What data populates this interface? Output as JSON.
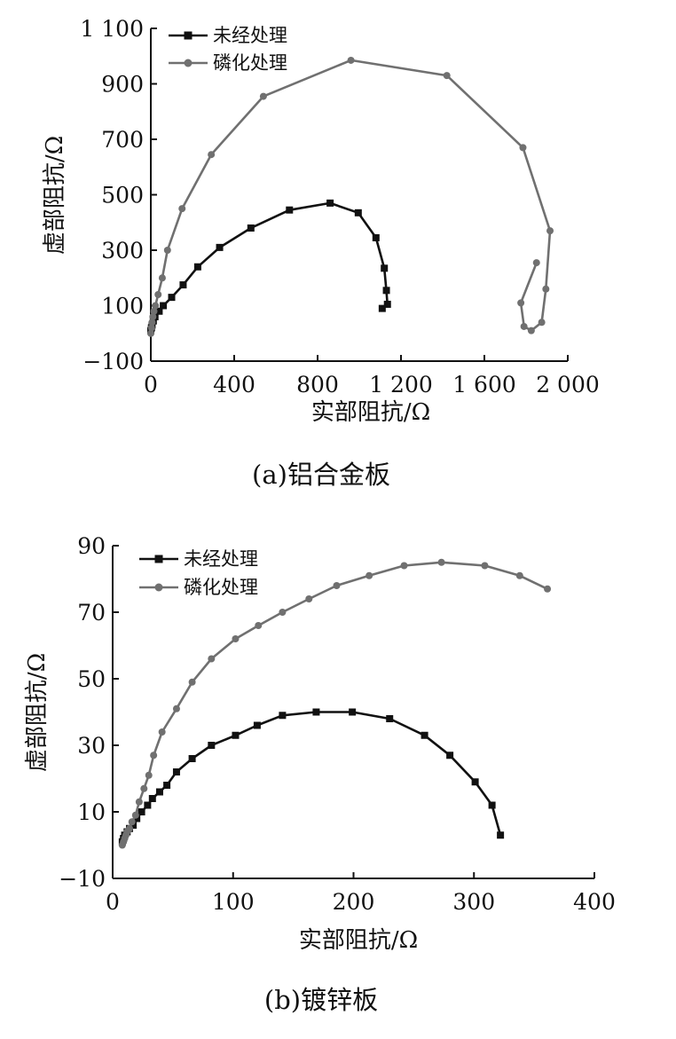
{
  "chart_data": [
    {
      "type": "line",
      "caption": "(a)铝合金板",
      "xlabel": "实部阻抗/Ω",
      "ylabel": "虚部阻抗/Ω",
      "xlim": [
        0,
        2000
      ],
      "ylim": [
        -100,
        1100
      ],
      "xticks": [
        0,
        400,
        800,
        1200,
        1600,
        2000
      ],
      "xtick_labels": [
        "0",
        "400",
        "800",
        "1 200",
        "1 600",
        "2 000"
      ],
      "yticks": [
        -100,
        100,
        300,
        500,
        700,
        900,
        1100
      ],
      "ytick_labels": [
        "−100",
        "100",
        "300",
        "500",
        "700",
        "900",
        "1 100"
      ],
      "legend_position": "top-left",
      "series": [
        {
          "name": "未经处理",
          "color": "#111111",
          "marker": "square",
          "x": [
            0,
            3,
            6,
            12,
            20,
            40,
            60,
            100,
            155,
            225,
            330,
            480,
            665,
            860,
            995,
            1080,
            1120,
            1130,
            1135,
            1110
          ],
          "y": [
            10,
            20,
            30,
            45,
            60,
            80,
            100,
            130,
            175,
            240,
            310,
            380,
            445,
            470,
            435,
            345,
            235,
            155,
            105,
            90
          ]
        },
        {
          "name": "磷化处理",
          "color": "#707070",
          "marker": "circle",
          "x": [
            0,
            3,
            6,
            10,
            15,
            22,
            35,
            55,
            80,
            150,
            290,
            540,
            960,
            1420,
            1785,
            1915,
            1895,
            1875,
            1825,
            1790,
            1775,
            1850
          ],
          "y": [
            0,
            20,
            40,
            60,
            80,
            100,
            140,
            200,
            300,
            450,
            645,
            855,
            985,
            930,
            670,
            370,
            160,
            40,
            10,
            25,
            110,
            255
          ]
        }
      ]
    },
    {
      "type": "line",
      "caption": "(b)镀锌板",
      "xlabel": "实部阻抗/Ω",
      "ylabel": "虚部阻抗/Ω",
      "xlim": [
        0,
        400
      ],
      "ylim": [
        -10,
        90
      ],
      "xticks": [
        0,
        100,
        200,
        300,
        400
      ],
      "xtick_labels": [
        "0",
        "100",
        "200",
        "300",
        "400"
      ],
      "yticks": [
        -10,
        10,
        30,
        50,
        70,
        90
      ],
      "ytick_labels": [
        "−10",
        "10",
        "30",
        "50",
        "70",
        "90"
      ],
      "legend_position": "top-left",
      "series": [
        {
          "name": "未经处理",
          "color": "#111111",
          "marker": "square",
          "x": [
            8,
            9,
            10,
            12,
            14,
            17,
            20,
            24,
            29,
            33,
            39,
            45,
            53,
            66,
            82,
            102,
            120,
            141,
            169,
            199,
            230,
            259,
            280,
            301,
            315,
            322
          ],
          "y": [
            1,
            2,
            3,
            4,
            5,
            6,
            8,
            10,
            12,
            14,
            16,
            18,
            22,
            26,
            30,
            33,
            36,
            39,
            40,
            40,
            38,
            33,
            27,
            19,
            12,
            3
          ]
        },
        {
          "name": "磷化处理",
          "color": "#707070",
          "marker": "circle",
          "x": [
            8,
            9,
            10,
            11,
            12,
            14,
            16,
            19,
            22,
            26,
            30,
            34,
            41,
            53,
            66,
            82,
            102,
            121,
            141,
            163,
            186,
            213,
            242,
            273,
            309,
            338,
            361
          ],
          "y": [
            0,
            1,
            2,
            3,
            4,
            5,
            7,
            9,
            13,
            17,
            21,
            27,
            34,
            41,
            49,
            56,
            62,
            66,
            70,
            74,
            78,
            81,
            84,
            85,
            84,
            81,
            77
          ]
        }
      ]
    }
  ]
}
